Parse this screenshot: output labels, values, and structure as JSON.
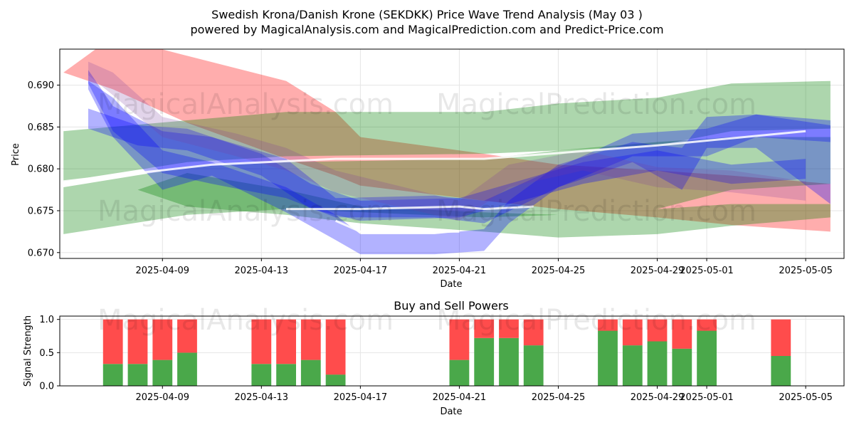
{
  "title_line1": "Swedish Krona/Danish Krone (SEKDKK) Price Wave Trend Analysis (May 03 )",
  "title_line2": "powered by MagicalAnalysis.com and MagicalPrediction.com and Predict-Price.com",
  "watermarks": [
    "MagicalAnalysis.com",
    "MagicalPrediction.com"
  ],
  "colors": {
    "red": "#ff0000",
    "green": "#008000",
    "blue": "#0000ff",
    "buy": "#4aa84a",
    "sell": "#ff4c4c",
    "grid": "#e5e5e5"
  },
  "chart_data": [
    {
      "type": "area",
      "title": "",
      "xlabel": "Date",
      "ylabel": "Price",
      "x_ticks": [
        "2025-04-09",
        "2025-04-13",
        "2025-04-17",
        "2025-04-21",
        "2025-04-25",
        "2025-04-29",
        "2025-05-01",
        "2025-05-05"
      ],
      "y_ticks": [
        "0.670",
        "0.675",
        "0.680",
        "0.685",
        "0.690"
      ],
      "xlim": [
        "2025-04-05",
        "2025-05-06"
      ],
      "ylim": [
        0.6693,
        0.6943
      ],
      "grid": true,
      "bands": [
        {
          "color": "red",
          "x": [
            "2025-04-05",
            "2025-04-07",
            "2025-04-10",
            "2025-04-14",
            "2025-04-16",
            "2025-04-17",
            "2025-04-22",
            "2025-04-25",
            "2025-04-29",
            "2025-05-02",
            "2025-05-06"
          ],
          "upper": [
            0.6915,
            0.6958,
            0.6935,
            0.6905,
            0.6868,
            0.6838,
            0.6818,
            0.6805,
            0.6798,
            0.6792,
            0.6782
          ],
          "lower": [
            0.6915,
            0.6895,
            0.6855,
            0.6812,
            0.6792,
            0.678,
            0.6762,
            0.6752,
            0.6742,
            0.6733,
            0.6725
          ]
        },
        {
          "color": "green",
          "x": [
            "2025-04-05",
            "2025-04-10",
            "2025-04-14",
            "2025-04-22",
            "2025-04-25",
            "2025-04-29",
            "2025-05-02",
            "2025-05-06"
          ],
          "upper": [
            0.6845,
            0.6858,
            0.6868,
            0.6868,
            0.6878,
            0.6885,
            0.6902,
            0.6905
          ],
          "lower": [
            0.6785,
            0.6808,
            0.6815,
            0.6818,
            0.6822,
            0.6828,
            0.6845,
            0.6848
          ]
        },
        {
          "color": "green",
          "x": [
            "2025-04-05",
            "2025-04-10",
            "2025-04-14",
            "2025-04-22",
            "2025-04-25",
            "2025-04-29",
            "2025-05-02",
            "2025-05-06"
          ],
          "upper": [
            0.6778,
            0.6802,
            0.6808,
            0.6812,
            0.6822,
            0.6832,
            0.6838,
            0.6838
          ],
          "lower": [
            0.6722,
            0.6745,
            0.6752,
            0.6742,
            0.6745,
            0.6752,
            0.6775,
            0.6782
          ]
        },
        {
          "color": "green",
          "x": [
            "2025-04-08",
            "2025-04-10",
            "2025-04-14",
            "2025-04-17",
            "2025-04-22",
            "2025-04-25",
            "2025-04-29",
            "2025-05-02",
            "2025-05-06"
          ],
          "upper": [
            0.6775,
            0.6795,
            0.6775,
            0.6755,
            0.6748,
            0.6745,
            0.6752,
            0.6758,
            0.6758
          ],
          "lower": [
            0.6775,
            0.6755,
            0.6745,
            0.6735,
            0.6725,
            0.6718,
            0.6722,
            0.6732,
            0.6742
          ]
        },
        {
          "color": "blue",
          "x": [
            "2025-04-06",
            "2025-04-07",
            "2025-04-09",
            "2025-04-11",
            "2025-04-14",
            "2025-04-16",
            "2025-04-17",
            "2025-04-20",
            "2025-04-22",
            "2025-04-23",
            "2025-04-25",
            "2025-04-28",
            "2025-04-30",
            "2025-05-01",
            "2025-05-03",
            "2025-05-06"
          ],
          "upper": [
            0.6905,
            0.6885,
            0.6822,
            0.6808,
            0.6778,
            0.6745,
            0.6722,
            0.6722,
            0.6728,
            0.6762,
            0.6805,
            0.6832,
            0.6825,
            0.6862,
            0.6865,
            0.6852
          ],
          "lower": [
            0.6895,
            0.6838,
            0.6775,
            0.6792,
            0.6748,
            0.6715,
            0.6698,
            0.6698,
            0.6702,
            0.6735,
            0.6778,
            0.6808,
            0.6775,
            0.6825,
            0.6825,
            0.6758
          ]
        },
        {
          "color": "blue",
          "x": [
            "2025-04-06",
            "2025-04-07",
            "2025-04-09",
            "2025-04-11",
            "2025-04-14",
            "2025-04-16",
            "2025-04-20",
            "2025-04-22",
            "2025-04-25",
            "2025-04-28",
            "2025-05-01",
            "2025-05-03",
            "2025-05-06"
          ],
          "upper": [
            0.6918,
            0.6875,
            0.6845,
            0.6838,
            0.6812,
            0.6765,
            0.6768,
            0.6762,
            0.6802,
            0.6842,
            0.6848,
            0.6865,
            0.6858
          ],
          "lower": [
            0.6902,
            0.6845,
            0.6795,
            0.6782,
            0.6765,
            0.6742,
            0.6742,
            0.6735,
            0.6778,
            0.6815,
            0.6815,
            0.6838,
            0.6832
          ]
        },
        {
          "color": "blue",
          "x": [
            "2025-04-06",
            "2025-04-08",
            "2025-04-10",
            "2025-04-13",
            "2025-04-15",
            "2025-04-17",
            "2025-04-21",
            "2025-04-23",
            "2025-04-26",
            "2025-04-29",
            "2025-05-02",
            "2025-05-05"
          ],
          "upper": [
            0.6872,
            0.6852,
            0.6848,
            0.6818,
            0.6782,
            0.6762,
            0.6765,
            0.6782,
            0.6808,
            0.6822,
            0.6805,
            0.6812
          ],
          "lower": [
            0.6848,
            0.6828,
            0.6822,
            0.6792,
            0.6752,
            0.6738,
            0.6742,
            0.6758,
            0.6782,
            0.6798,
            0.6782,
            0.6788
          ]
        },
        {
          "color": "purple",
          "x": [
            "2025-04-06",
            "2025-04-07",
            "2025-04-09",
            "2025-04-12",
            "2025-04-14",
            "2025-04-16",
            "2025-04-21",
            "2025-04-23",
            "2025-04-26",
            "2025-04-29",
            "2025-05-02",
            "2025-05-05"
          ],
          "upper": [
            0.6928,
            0.6915,
            0.6862,
            0.6842,
            0.6825,
            0.6798,
            0.6762,
            0.6805,
            0.6822,
            0.6802,
            0.6798,
            0.6785
          ],
          "lower": [
            0.6912,
            0.6888,
            0.6838,
            0.6815,
            0.6798,
            0.6772,
            0.6738,
            0.6778,
            0.6798,
            0.6778,
            0.6772,
            0.6762
          ]
        }
      ],
      "lines": [
        {
          "color": "white",
          "x": [
            "2025-04-05",
            "2025-04-11",
            "2025-04-16",
            "2025-04-22",
            "2025-04-29",
            "2025-05-05"
          ],
          "y": [
            0.6785,
            0.6805,
            0.6812,
            0.6812,
            0.6828,
            0.6845
          ]
        },
        {
          "color": "white",
          "x": [
            "2025-04-14",
            "2025-04-16",
            "2025-04-17",
            "2025-04-21",
            "2025-04-22",
            "2025-04-24"
          ],
          "y": [
            0.6752,
            0.6752,
            0.6752,
            0.6755,
            0.6752,
            0.6755
          ]
        },
        {
          "color": "white",
          "x": [
            "2025-04-16",
            "2025-04-17",
            "2025-04-21"
          ],
          "y": [
            0.6738,
            0.6725,
            0.6725
          ]
        }
      ]
    },
    {
      "type": "bar",
      "title": "Buy and Sell Powers",
      "xlabel": "Date",
      "ylabel": "Signal Strength",
      "x_ticks": [
        "2025-04-09",
        "2025-04-13",
        "2025-04-17",
        "2025-04-21",
        "2025-04-25",
        "2025-04-29",
        "2025-05-01",
        "2025-05-05"
      ],
      "y_ticks": [
        "0.0",
        "0.5",
        "1.0"
      ],
      "xlim": [
        "2025-04-05",
        "2025-05-06"
      ],
      "ylim": [
        0,
        1.05
      ],
      "grid": true,
      "categories": [
        "2025-04-07",
        "2025-04-08",
        "2025-04-09",
        "2025-04-10",
        "2025-04-13",
        "2025-04-14",
        "2025-04-15",
        "2025-04-16",
        "2025-04-21",
        "2025-04-22",
        "2025-04-23",
        "2025-04-24",
        "2025-04-27",
        "2025-04-28",
        "2025-04-29",
        "2025-04-30",
        "2025-05-01",
        "2025-05-04"
      ],
      "series": [
        {
          "name": "Buy",
          "values": [
            0.33,
            0.33,
            0.39,
            0.5,
            0.33,
            0.33,
            0.39,
            0.17,
            0.39,
            0.72,
            0.72,
            0.61,
            0.83,
            0.61,
            0.67,
            0.56,
            0.83,
            0.45
          ]
        },
        {
          "name": "Sell",
          "values": [
            0.67,
            0.67,
            0.61,
            0.5,
            0.67,
            0.67,
            0.61,
            0.83,
            0.61,
            0.28,
            0.28,
            0.39,
            0.17,
            0.39,
            0.33,
            0.44,
            0.17,
            0.55
          ]
        }
      ]
    }
  ]
}
